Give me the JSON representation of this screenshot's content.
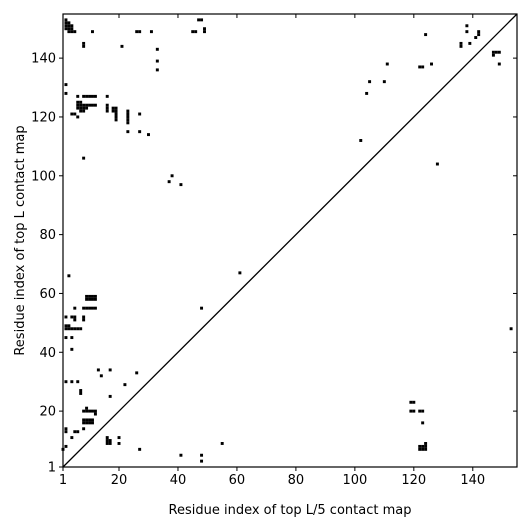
{
  "chart_data": {
    "type": "scatter",
    "title": "",
    "xlabel": "Residue index of top L/5 contact map",
    "ylabel": "Residue index of top L contact map",
    "xlim": [
      1,
      155
    ],
    "ylim": [
      1,
      155
    ],
    "xticks": [
      1,
      20,
      40,
      60,
      80,
      100,
      120,
      140
    ],
    "yticks": [
      1,
      20,
      40,
      60,
      80,
      100,
      120,
      140
    ],
    "xtick_labels": [
      "1",
      "20",
      "40",
      "60",
      "80",
      "100",
      "120",
      "140"
    ],
    "ytick_labels": [
      "1",
      "20",
      "40",
      "60",
      "80",
      "100",
      "120",
      "140"
    ],
    "diagonal": true,
    "grid": false,
    "marker_color": "#000000",
    "series": [
      {
        "name": "",
        "points": [
          [
            2,
            153
          ],
          [
            2,
            152
          ],
          [
            2,
            151
          ],
          [
            2,
            150
          ],
          [
            3,
            152
          ],
          [
            3,
            151
          ],
          [
            3,
            150
          ],
          [
            4,
            151
          ],
          [
            4,
            150
          ],
          [
            4,
            149
          ],
          [
            5,
            149
          ],
          [
            3,
            149
          ],
          [
            8,
            144
          ],
          [
            8,
            145
          ],
          [
            21,
            144
          ],
          [
            11,
            149
          ],
          [
            26,
            149
          ],
          [
            27,
            149
          ],
          [
            31,
            149
          ],
          [
            33,
            143
          ],
          [
            33,
            139
          ],
          [
            33,
            136
          ],
          [
            47,
            153
          ],
          [
            48,
            153
          ],
          [
            49,
            150
          ],
          [
            49,
            149
          ],
          [
            46,
            149
          ],
          [
            45,
            149
          ],
          [
            2,
            131
          ],
          [
            2,
            128
          ],
          [
            4,
            121
          ],
          [
            5,
            121
          ],
          [
            6,
            120
          ],
          [
            6,
            127
          ],
          [
            6,
            125
          ],
          [
            6,
            124
          ],
          [
            6,
            123
          ],
          [
            7,
            125
          ],
          [
            7,
            124
          ],
          [
            7,
            123
          ],
          [
            7,
            122
          ],
          [
            8,
            124
          ],
          [
            8,
            123
          ],
          [
            8,
            122
          ],
          [
            9,
            124
          ],
          [
            9,
            123
          ],
          [
            8,
            127
          ],
          [
            9,
            127
          ],
          [
            10,
            127
          ],
          [
            11,
            127
          ],
          [
            12,
            127
          ],
          [
            10,
            124
          ],
          [
            11,
            124
          ],
          [
            12,
            124
          ],
          [
            16,
            127
          ],
          [
            16,
            124
          ],
          [
            16,
            123
          ],
          [
            16,
            122
          ],
          [
            18,
            123
          ],
          [
            18,
            122
          ],
          [
            19,
            123
          ],
          [
            19,
            122
          ],
          [
            19,
            121
          ],
          [
            19,
            120
          ],
          [
            19,
            119
          ],
          [
            23,
            122
          ],
          [
            23,
            121
          ],
          [
            23,
            120
          ],
          [
            23,
            119
          ],
          [
            23,
            118
          ],
          [
            23,
            115
          ],
          [
            27,
            121
          ],
          [
            27,
            115
          ],
          [
            30,
            114
          ],
          [
            8,
            106
          ],
          [
            37,
            98
          ],
          [
            38,
            100
          ],
          [
            41,
            97
          ],
          [
            102,
            112
          ],
          [
            104,
            128
          ],
          [
            105,
            132
          ],
          [
            110,
            132
          ],
          [
            111,
            138
          ],
          [
            128,
            104
          ],
          [
            122,
            137
          ],
          [
            123,
            137
          ],
          [
            124,
            148
          ],
          [
            126,
            138
          ],
          [
            136,
            145
          ],
          [
            136,
            144
          ],
          [
            138,
            151
          ],
          [
            138,
            149
          ],
          [
            139,
            145
          ],
          [
            141,
            147
          ],
          [
            142,
            149
          ],
          [
            142,
            148
          ],
          [
            147,
            141
          ],
          [
            147,
            142
          ],
          [
            148,
            142
          ],
          [
            149,
            142
          ],
          [
            149,
            138
          ],
          [
            153,
            48
          ],
          [
            3,
            66
          ],
          [
            61,
            67
          ],
          [
            48,
            55
          ],
          [
            2,
            52
          ],
          [
            2,
            49
          ],
          [
            2,
            48
          ],
          [
            2,
            45
          ],
          [
            3,
            49
          ],
          [
            3,
            48
          ],
          [
            4,
            52
          ],
          [
            4,
            48
          ],
          [
            4,
            45
          ],
          [
            4,
            41
          ],
          [
            5,
            55
          ],
          [
            5,
            52
          ],
          [
            5,
            51
          ],
          [
            5,
            48
          ],
          [
            6,
            48
          ],
          [
            7,
            48
          ],
          [
            8,
            55
          ],
          [
            8,
            52
          ],
          [
            8,
            51
          ],
          [
            9,
            55
          ],
          [
            10,
            55
          ],
          [
            11,
            55
          ],
          [
            12,
            55
          ],
          [
            9,
            59
          ],
          [
            9,
            58
          ],
          [
            10,
            59
          ],
          [
            10,
            58
          ],
          [
            11,
            59
          ],
          [
            11,
            58
          ],
          [
            12,
            59
          ],
          [
            12,
            58
          ],
          [
            2,
            30
          ],
          [
            4,
            30
          ],
          [
            6,
            30
          ],
          [
            7,
            27
          ],
          [
            7,
            26
          ],
          [
            13,
            34
          ],
          [
            14,
            32
          ],
          [
            17,
            34
          ],
          [
            17,
            25
          ],
          [
            22,
            29
          ],
          [
            26,
            33
          ],
          [
            8,
            20
          ],
          [
            9,
            21
          ],
          [
            9,
            20
          ],
          [
            10,
            20
          ],
          [
            11,
            20
          ],
          [
            12,
            20
          ],
          [
            12,
            19
          ],
          [
            8,
            17
          ],
          [
            8,
            16
          ],
          [
            9,
            17
          ],
          [
            9,
            16
          ],
          [
            10,
            17
          ],
          [
            10,
            16
          ],
          [
            11,
            17
          ],
          [
            11,
            16
          ],
          [
            2,
            14
          ],
          [
            2,
            13
          ],
          [
            4,
            11
          ],
          [
            5,
            13
          ],
          [
            6,
            13
          ],
          [
            8,
            14
          ],
          [
            16,
            11
          ],
          [
            16,
            10
          ],
          [
            16,
            9
          ],
          [
            17,
            10
          ],
          [
            17,
            9
          ],
          [
            20,
            11
          ],
          [
            20,
            9
          ],
          [
            27,
            7
          ],
          [
            41,
            5
          ],
          [
            48,
            5
          ],
          [
            48,
            3
          ],
          [
            55,
            9
          ],
          [
            1,
            7
          ],
          [
            2,
            8
          ],
          [
            119,
            23
          ],
          [
            120,
            23
          ],
          [
            119,
            20
          ],
          [
            120,
            20
          ],
          [
            122,
            20
          ],
          [
            123,
            20
          ],
          [
            123,
            16
          ],
          [
            122,
            8
          ],
          [
            122,
            7
          ],
          [
            123,
            8
          ],
          [
            123,
            7
          ],
          [
            124,
            8
          ],
          [
            124,
            7
          ],
          [
            124,
            9
          ]
        ]
      }
    ]
  }
}
